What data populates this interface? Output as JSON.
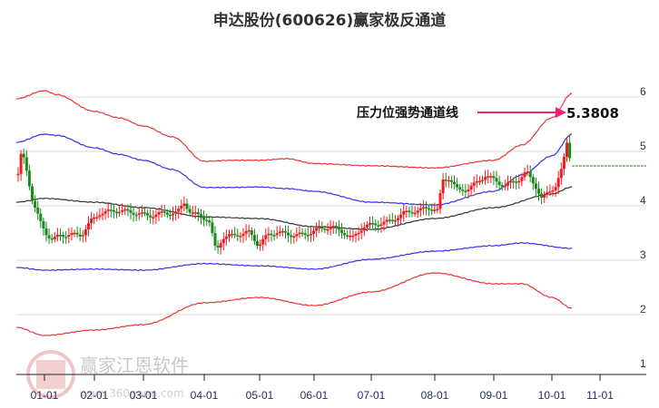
{
  "title": "申达股份(600626)赢家极反通道",
  "annotation": {
    "label": "压力位强势通道线",
    "value": "5.3808",
    "arrow_color": "#e8237a"
  },
  "watermark": {
    "name": "赢家江恩软件",
    "url": "www.360gann.com",
    "seal": [
      "江",
      "赢",
      "恩",
      "家"
    ]
  },
  "colors": {
    "up": "#ee1c1c",
    "down": "#1a8a1a",
    "outer_band": "#ee3333",
    "inner_band": "#3333ee",
    "mid_line": "#333333",
    "grid": "#dddddd",
    "last_price_line": "#1a8a1a"
  },
  "chart_data": {
    "type": "candlestick_with_bands",
    "title": "申达股份(600626)赢家极反通道",
    "xlabel": "",
    "ylabel": "",
    "ylim": [
      1,
      6.3
    ],
    "y_ticks": [
      "6",
      "5",
      "4",
      "3",
      "2",
      "1"
    ],
    "x_ticks": [
      "01-01",
      "02-01",
      "03-01",
      "04-01",
      "05-01",
      "06-01",
      "07-01",
      "08-01",
      "09-01",
      "10-01",
      "11-01"
    ],
    "grid": true,
    "legend": null,
    "last_price": 4.77,
    "annotation_value": 5.3808,
    "series": [
      {
        "name": "outer_upper",
        "color": "#ee3333",
        "points": [
          [
            "12-25",
            5.95
          ],
          [
            "01-01",
            6.1
          ],
          [
            "01-10",
            6.03
          ],
          [
            "02-01",
            5.72
          ],
          [
            "02-15",
            5.6
          ],
          [
            "03-01",
            5.45
          ],
          [
            "03-15",
            5.25
          ],
          [
            "04-01",
            4.8
          ],
          [
            "04-15",
            4.82
          ],
          [
            "05-01",
            4.82
          ],
          [
            "05-15",
            4.85
          ],
          [
            "06-01",
            4.76
          ],
          [
            "07-01",
            4.72
          ],
          [
            "08-01",
            4.68
          ],
          [
            "09-01",
            4.82
          ],
          [
            "09-15",
            5.1
          ],
          [
            "10-01",
            5.6
          ],
          [
            "10-15",
            6.05
          ]
        ]
      },
      {
        "name": "inner_upper",
        "color": "#3333ee",
        "points": [
          [
            "12-25",
            5.15
          ],
          [
            "01-01",
            5.3
          ],
          [
            "01-10",
            5.28
          ],
          [
            "02-01",
            5.05
          ],
          [
            "02-15",
            4.93
          ],
          [
            "03-01",
            4.82
          ],
          [
            "03-15",
            4.65
          ],
          [
            "04-01",
            4.32
          ],
          [
            "04-15",
            4.32
          ],
          [
            "05-01",
            4.33
          ],
          [
            "05-15",
            4.3
          ],
          [
            "06-01",
            4.25
          ],
          [
            "07-01",
            4.05
          ],
          [
            "08-01",
            4.0
          ],
          [
            "09-01",
            4.25
          ],
          [
            "09-15",
            4.55
          ],
          [
            "10-01",
            4.9
          ],
          [
            "10-15",
            5.3
          ]
        ]
      },
      {
        "name": "middle",
        "color": "#333333",
        "points": [
          [
            "12-25",
            4.05
          ],
          [
            "01-01",
            4.12
          ],
          [
            "02-01",
            4.05
          ],
          [
            "03-01",
            3.95
          ],
          [
            "04-01",
            3.78
          ],
          [
            "05-01",
            3.75
          ],
          [
            "06-01",
            3.6
          ],
          [
            "07-01",
            3.55
          ],
          [
            "08-01",
            3.75
          ],
          [
            "09-01",
            3.95
          ],
          [
            "10-01",
            4.2
          ],
          [
            "10-15",
            4.33
          ]
        ]
      },
      {
        "name": "inner_lower",
        "color": "#3333ee",
        "points": [
          [
            "12-25",
            2.85
          ],
          [
            "01-01",
            2.8
          ],
          [
            "02-01",
            2.82
          ],
          [
            "03-01",
            2.8
          ],
          [
            "04-01",
            2.92
          ],
          [
            "05-01",
            2.88
          ],
          [
            "06-01",
            2.82
          ],
          [
            "07-01",
            3.0
          ],
          [
            "08-01",
            3.15
          ],
          [
            "09-01",
            3.25
          ],
          [
            "09-15",
            3.3
          ],
          [
            "10-15",
            3.2
          ]
        ]
      },
      {
        "name": "outer_lower",
        "color": "#ee3333",
        "points": [
          [
            "12-25",
            1.75
          ],
          [
            "01-01",
            1.6
          ],
          [
            "02-01",
            1.7
          ],
          [
            "03-01",
            1.8
          ],
          [
            "04-01",
            2.2
          ],
          [
            "05-01",
            2.3
          ],
          [
            "06-01",
            2.15
          ],
          [
            "07-01",
            2.4
          ],
          [
            "08-01",
            2.75
          ],
          [
            "09-01",
            2.55
          ],
          [
            "09-15",
            2.55
          ],
          [
            "10-01",
            2.3
          ],
          [
            "10-15",
            2.1
          ]
        ]
      }
    ]
  }
}
